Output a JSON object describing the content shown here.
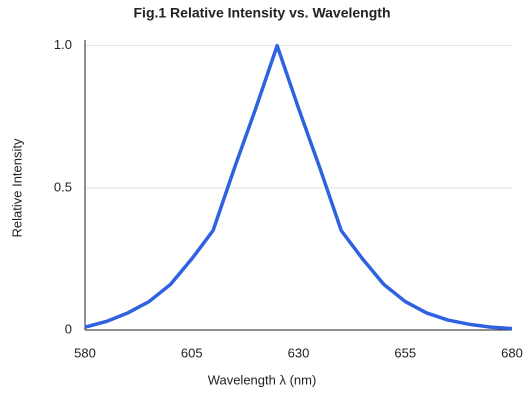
{
  "chart_data": {
    "type": "line",
    "title": "Fig.1 Relative Intensity vs. Wavelength",
    "x_label": "Wavelength λ (nm)",
    "y_label": "Relative Intensity",
    "x": [
      580,
      585,
      590,
      595,
      600,
      605,
      610,
      615,
      620,
      625,
      630,
      635,
      640,
      645,
      650,
      655,
      660,
      665,
      670,
      675,
      680
    ],
    "series": [
      {
        "name": "Relative Intensity",
        "color": "#2f62e0",
        "values": [
          0.01,
          0.03,
          0.06,
          0.1,
          0.16,
          0.25,
          0.35,
          0.57,
          0.78,
          1.0,
          0.78,
          0.57,
          0.35,
          0.25,
          0.16,
          0.1,
          0.06,
          0.035,
          0.02,
          0.01,
          0.005
        ]
      }
    ],
    "xlim": [
      580,
      680
    ],
    "xticks": [
      580,
      605,
      630,
      655,
      680
    ],
    "ylim": [
      0,
      1.02
    ],
    "yticks": [
      0,
      0.5,
      {
        "value": 1,
        "label": "1.0"
      }
    ],
    "grid": true
  }
}
